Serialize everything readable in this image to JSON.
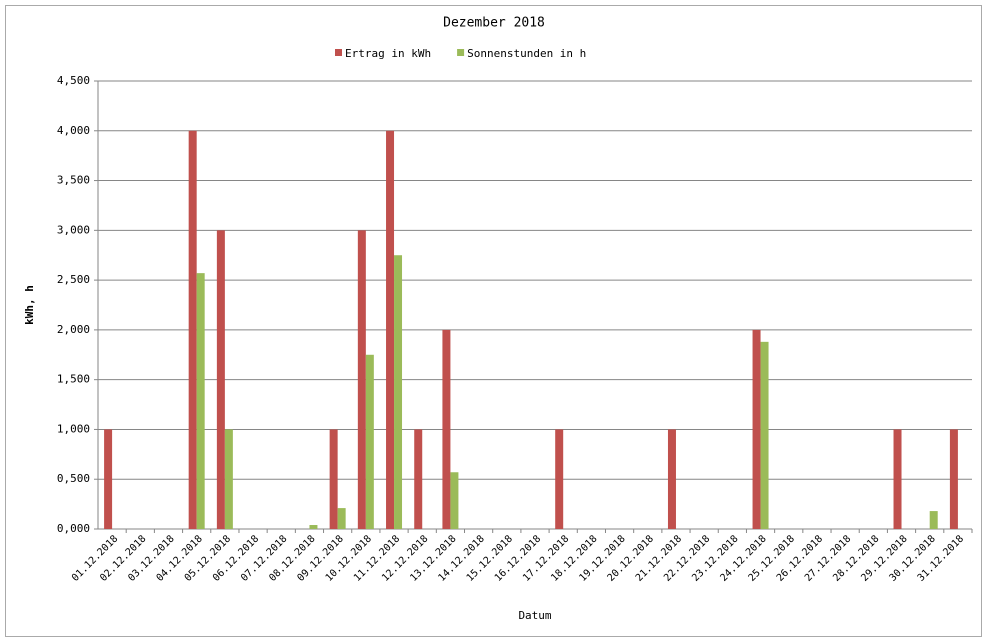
{
  "chart_data": {
    "type": "bar",
    "title": "Dezember 2018",
    "x_label": "Datum",
    "y_label": "kWh, h",
    "categories": [
      "01.12.2018",
      "02.12.2018",
      "03.12.2018",
      "04.12.2018",
      "05.12.2018",
      "06.12.2018",
      "07.12.2018",
      "08.12.2018",
      "09.12.2018",
      "10.12.2018",
      "11.12.2018",
      "12.12.2018",
      "13.12.2018",
      "14.12.2018",
      "15.12.2018",
      "16.12.2018",
      "17.12.2018",
      "18.12.2018",
      "19.12.2018",
      "20.12.2018",
      "21.12.2018",
      "22.12.2018",
      "23.12.2018",
      "24.12.2018",
      "25.12.2018",
      "26.12.2018",
      "27.12.2018",
      "28.12.2018",
      "29.12.2018",
      "30.12.2018",
      "31.12.2018"
    ],
    "series": [
      {
        "name": "Ertrag in kWh",
        "color": "#c0504d",
        "values": [
          1,
          0,
          0,
          4,
          3,
          0,
          0,
          0,
          1,
          3,
          4,
          1,
          2,
          0,
          0,
          0,
          1,
          0,
          0,
          0,
          1,
          0,
          0,
          2,
          0,
          0,
          0,
          0,
          1,
          0,
          1
        ]
      },
      {
        "name": "Sonnenstunden in h",
        "color": "#9bbb59",
        "values": [
          0,
          0,
          0,
          2.57,
          1.0,
          0,
          0,
          0.04,
          0.21,
          1.75,
          2.75,
          0,
          0.57,
          0,
          0,
          0,
          0,
          0,
          0,
          0,
          0,
          0,
          0,
          1.88,
          0,
          0,
          0,
          0,
          0,
          0.18,
          0
        ]
      }
    ],
    "ylim": [
      0,
      4.5
    ],
    "yticks": [
      {
        "value": 0,
        "label": "0,000"
      },
      {
        "value": 0.5,
        "label": "0,500"
      },
      {
        "value": 1,
        "label": "1,000"
      },
      {
        "value": 1.5,
        "label": "1,500"
      },
      {
        "value": 2,
        "label": "2,000"
      },
      {
        "value": 2.5,
        "label": "2,500"
      },
      {
        "value": 3,
        "label": "3,000"
      },
      {
        "value": 3.5,
        "label": "3,500"
      },
      {
        "value": 4,
        "label": "4,000"
      },
      {
        "value": 4.5,
        "label": "4,500"
      }
    ],
    "grid": true,
    "legend": "top"
  }
}
